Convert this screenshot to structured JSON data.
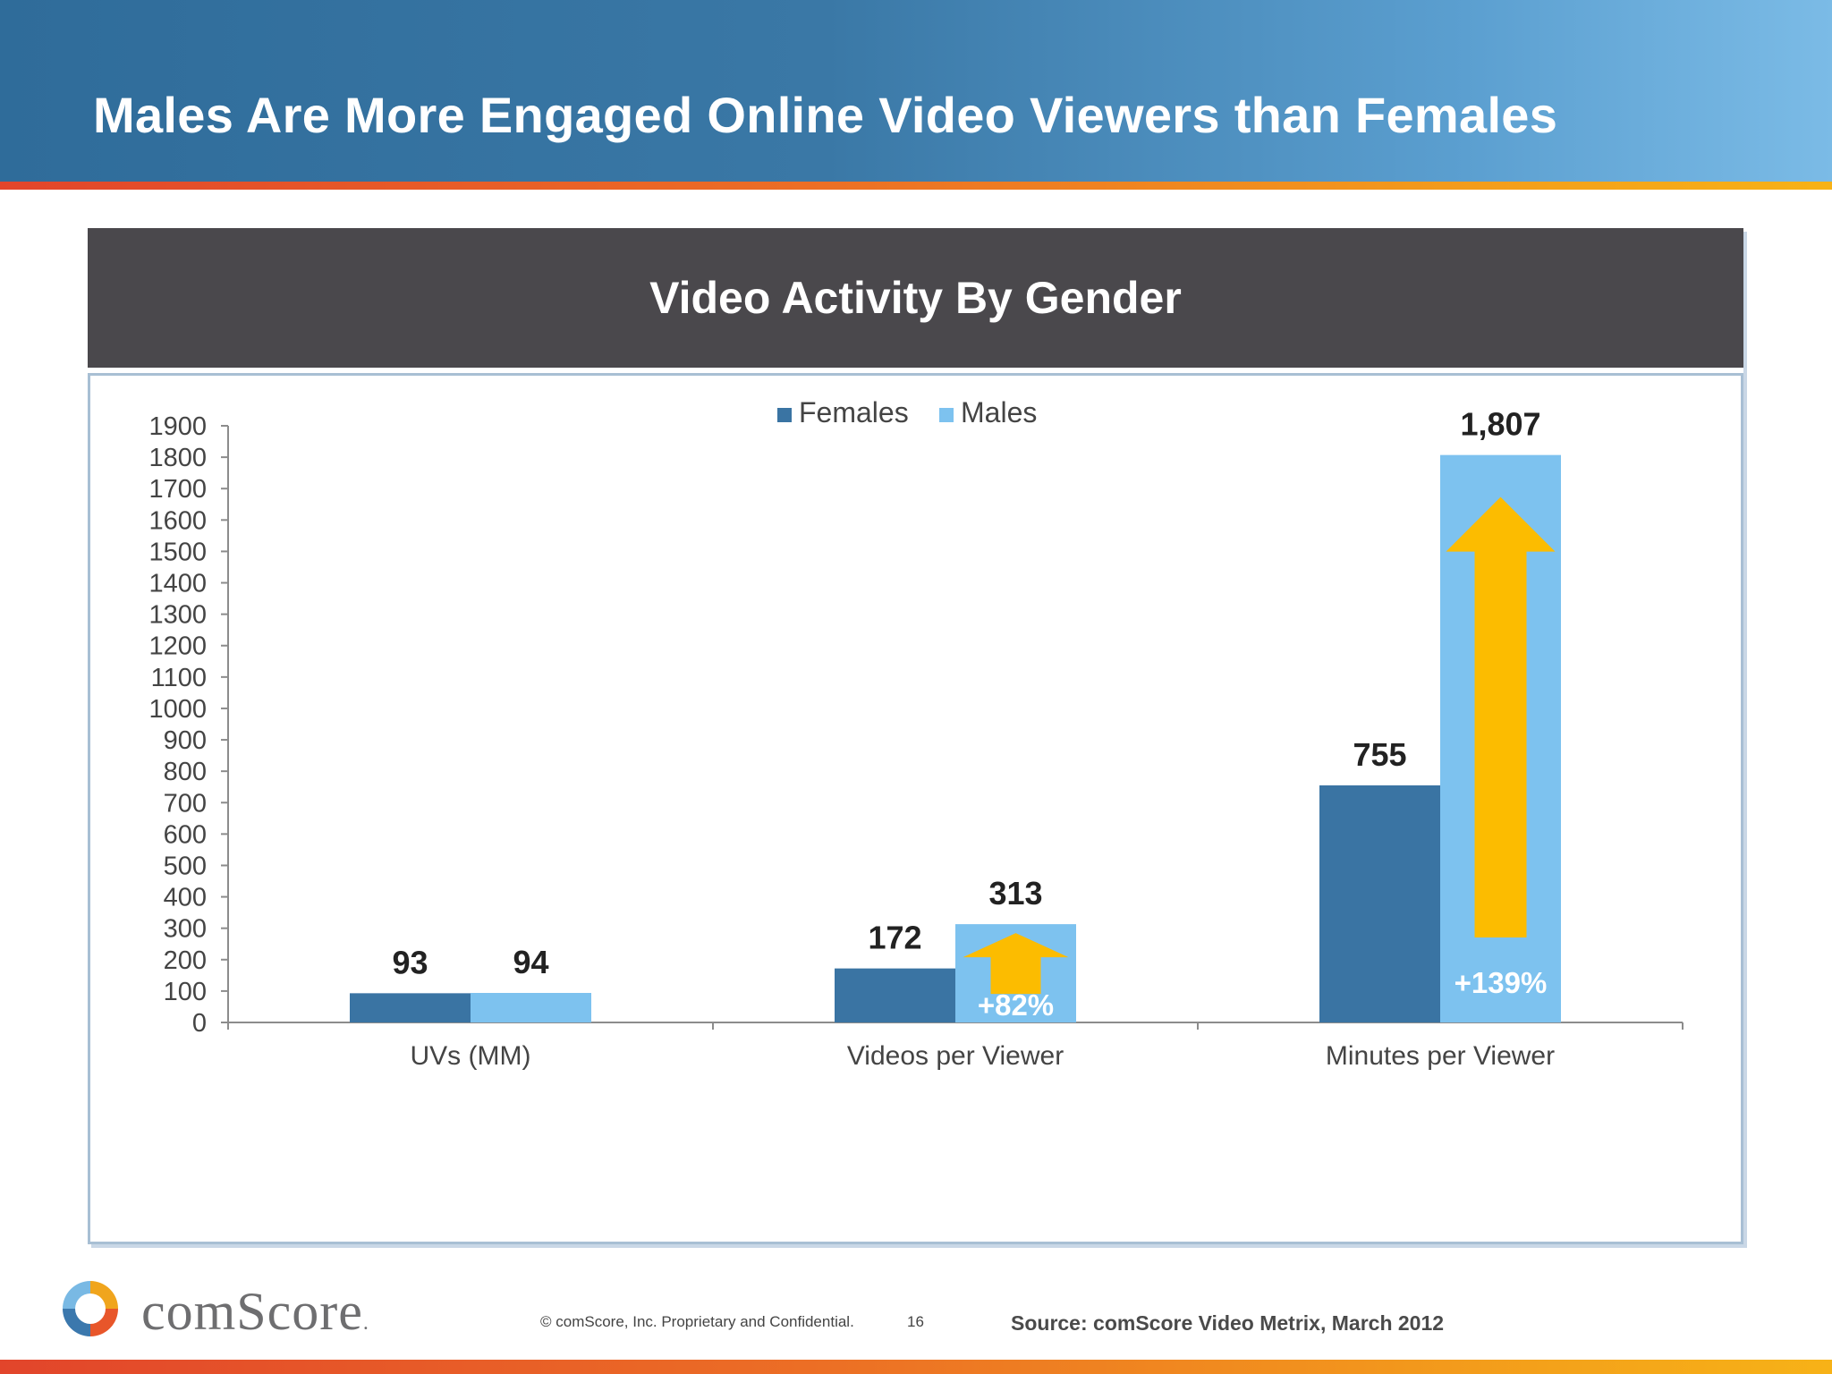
{
  "header": {
    "title": "Males Are More Engaged Online Video Viewers than Females"
  },
  "colors": {
    "females": "#3a74a3",
    "males": "#7dc2ef",
    "arrow": "#fcbc00",
    "axis": "#8c8c8c"
  },
  "chart_data": {
    "type": "bar",
    "title": "Video Activity By Gender",
    "categories": [
      "UVs (MM)",
      "Videos per Viewer",
      "Minutes per Viewer"
    ],
    "series": [
      {
        "name": "Females",
        "values": [
          93,
          172,
          755
        ],
        "labels": [
          "93",
          "172",
          "755"
        ]
      },
      {
        "name": "Males",
        "values": [
          94,
          313,
          1807
        ],
        "labels": [
          "94",
          "313",
          "1,807"
        ]
      }
    ],
    "ylim": [
      0,
      1900
    ],
    "yticks": [
      0,
      100,
      200,
      300,
      400,
      500,
      600,
      700,
      800,
      900,
      1000,
      1100,
      1200,
      1300,
      1400,
      1500,
      1600,
      1700,
      1800,
      1900
    ],
    "legend_position": "top-center",
    "grid": false,
    "annotations": [
      {
        "category": "Videos per Viewer",
        "text": "+82%",
        "arrow": "up"
      },
      {
        "category": "Minutes per Viewer",
        "text": "+139%",
        "arrow": "up"
      }
    ]
  },
  "footer": {
    "brand": "comScore",
    "copyright": "© comScore, Inc.  Proprietary and Confidential.",
    "page_number": "16",
    "source": "Source: comScore Video Metrix, March 2012"
  }
}
